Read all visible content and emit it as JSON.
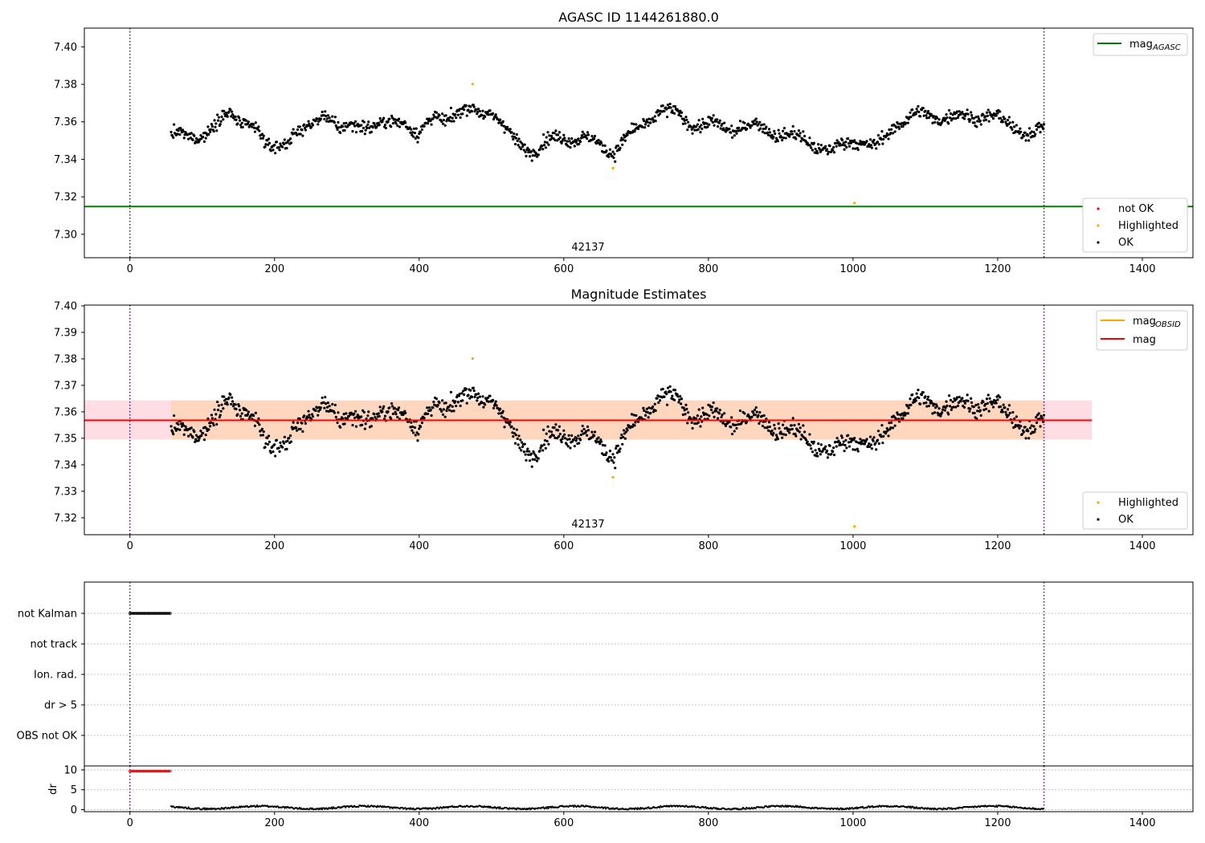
{
  "chart_data": [
    {
      "type": "scatter",
      "title": "AGASC ID 1144261880.0",
      "xlim": [
        -63,
        1470
      ],
      "ylim": [
        7.2875,
        7.41
      ],
      "x_ticks": [
        "0",
        "200",
        "400",
        "600",
        "800",
        "1000",
        "1200",
        "1400"
      ],
      "y_ticks": [
        "7.30",
        "7.32",
        "7.34",
        "7.36",
        "7.38",
        "7.40"
      ],
      "obsid_label": "42137",
      "vlines": [
        0,
        1264
      ],
      "mag_agasc": 7.3148,
      "legend_lines": [
        "mag",
        "AGASC"
      ],
      "legend_points": [
        "not OK",
        "Highlighted",
        "OK"
      ],
      "highlighted_points": [
        [
          474,
          7.3801
        ],
        [
          668,
          7.3353
        ],
        [
          1002,
          7.3167
        ]
      ],
      "ok_series_note": "~1200 points, 7.338-7.375, x 57-1264",
      "colors": {
        "ok": "#000000",
        "highlighted": "#ffa500",
        "not_ok": "#ff0000",
        "mag_agasc": "#008000",
        "vline": "#800080"
      }
    },
    {
      "type": "scatter",
      "title": "Magnitude Estimates",
      "xlim": [
        -63,
        1470
      ],
      "ylim": [
        7.3136,
        7.4003
      ],
      "x_ticks": [
        "0",
        "200",
        "400",
        "600",
        "800",
        "1000",
        "1200",
        "1400"
      ],
      "y_ticks": [
        "7.32",
        "7.33",
        "7.34",
        "7.35",
        "7.36",
        "7.37",
        "7.38",
        "7.39",
        "7.40"
      ],
      "obsid_label": "42137",
      "mag": 7.3568,
      "mag_obsid": 7.3568,
      "band": [
        7.3495,
        7.3643
      ],
      "legend_lines": [
        "mag",
        "OBSID",
        "mag"
      ],
      "legend_points": [
        "Highlighted",
        "OK"
      ],
      "highlighted_points": [
        [
          474,
          7.3801
        ],
        [
          668,
          7.3353
        ],
        [
          1002,
          7.3167
        ]
      ],
      "colors": {
        "mag": "#ff0000",
        "mag_obsid": "#ffa500",
        "band_outer": "#ffdde4",
        "band_inner": "#ffd7bf"
      }
    },
    {
      "type": "flags",
      "categories": [
        "not Kalman",
        "not track",
        "Ion. rad.",
        "dr > 5",
        "OBS not OK"
      ],
      "not_kalman_range": [
        0,
        57
      ],
      "x_ticks": [
        "0",
        "200",
        "400",
        "600",
        "800",
        "1000",
        "1200",
        "1400"
      ]
    },
    {
      "type": "scatter",
      "ylabel": "dr",
      "y_ticks": [
        "0",
        "5",
        "10"
      ],
      "ylim": [
        -0.5,
        11
      ],
      "x_ticks": [
        "0",
        "200",
        "400",
        "600",
        "800",
        "1000",
        "1200",
        "1400"
      ],
      "red_points_range": [
        0,
        57
      ],
      "red_value": 9.7,
      "black_series_note": "dr ~0.2-1.0 for x 57-1264"
    }
  ]
}
